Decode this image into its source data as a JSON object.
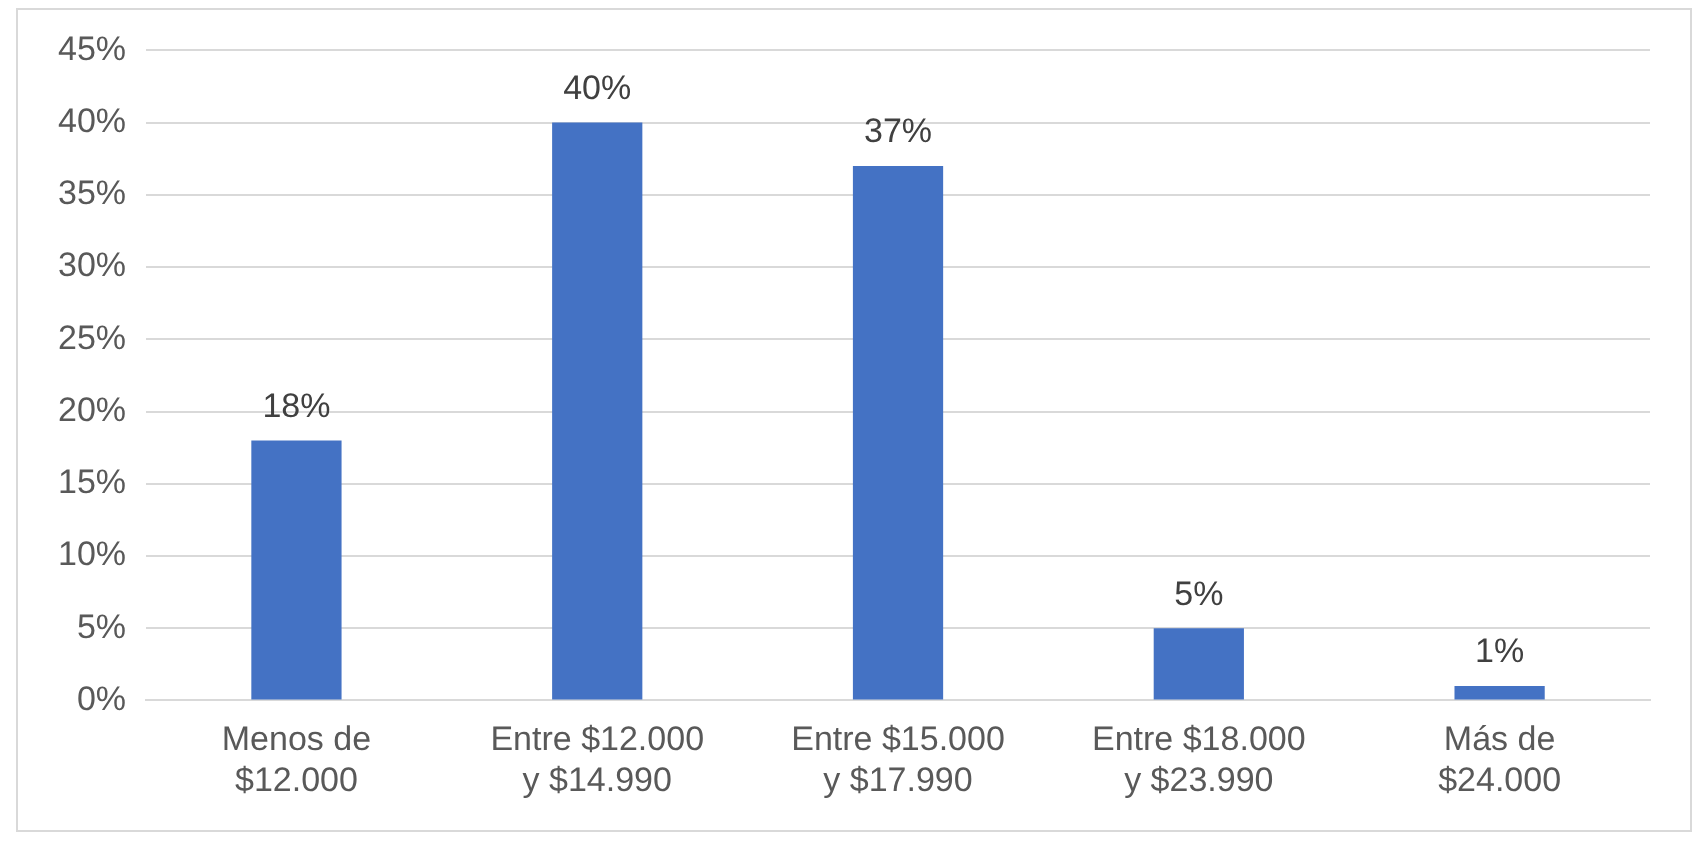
{
  "chart_data": {
    "type": "bar",
    "categories": [
      "Menos de $12.000",
      "Entre $12.000 y $14.990",
      "Entre $15.000 y $17.990",
      "Entre $18.000 y $23.990",
      "Más de $24.000"
    ],
    "values": [
      18,
      40,
      37,
      5,
      1
    ],
    "color": "#4472c4",
    "value_labels": [
      "18%",
      "40%",
      "37%",
      "5%",
      "1%"
    ],
    "ylim": [
      0,
      45
    ],
    "yticks": [
      {
        "value": 0,
        "label": "0%"
      },
      {
        "value": 5,
        "label": "5%"
      },
      {
        "value": 10,
        "label": "10%"
      },
      {
        "value": 15,
        "label": "15%"
      },
      {
        "value": 20,
        "label": "20%"
      },
      {
        "value": 25,
        "label": "25%"
      },
      {
        "value": 30,
        "label": "30%"
      },
      {
        "value": 35,
        "label": "35%"
      },
      {
        "value": 40,
        "label": "40%"
      },
      {
        "value": 45,
        "label": "45%"
      }
    ],
    "grid": "y",
    "legend": false
  }
}
